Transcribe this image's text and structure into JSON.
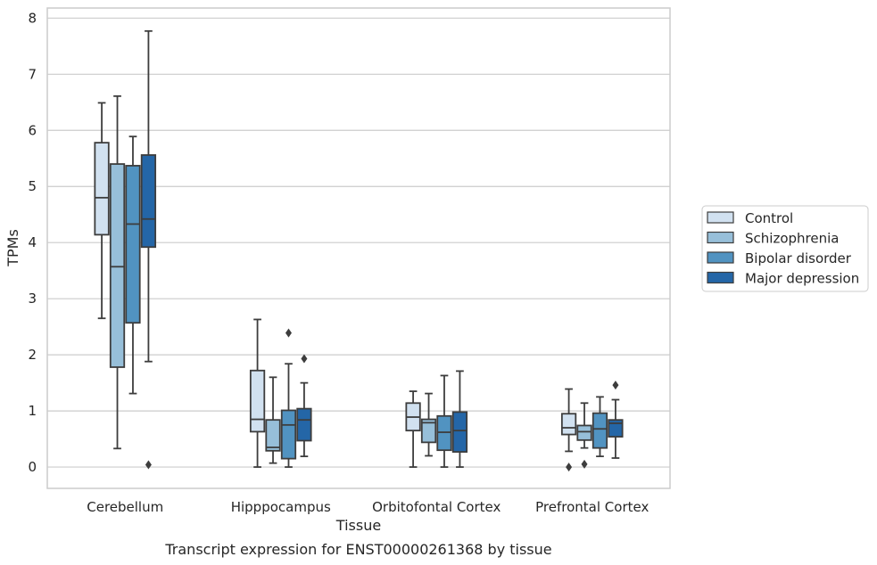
{
  "caption": "Transcript expression for ENST00000261368 by tissue",
  "chart_data": {
    "type": "box",
    "title": "",
    "xlabel": "Tissue",
    "ylabel": "TPMs",
    "ylim": [
      -0.38,
      8.18
    ],
    "yticks": [
      "0",
      "1",
      "2",
      "3",
      "4",
      "5",
      "6",
      "7",
      "8"
    ],
    "grid": "horizontal",
    "legend_position": "right",
    "categories": [
      "Cerebellum",
      "Hipppocampus",
      "Orbitofontal Cortex",
      "Prefrontal Cortex"
    ],
    "series": [
      {
        "name": "Control",
        "color": "#d1e1f0",
        "boxes": [
          {
            "whisker_low": 2.65,
            "q1": 4.14,
            "median": 4.8,
            "q3": 5.78,
            "whisker_high": 6.49,
            "outliers": []
          },
          {
            "whisker_low": 0.0,
            "q1": 0.63,
            "median": 0.85,
            "q3": 1.72,
            "whisker_high": 2.63,
            "outliers": []
          },
          {
            "whisker_low": 0.0,
            "q1": 0.65,
            "median": 0.89,
            "q3": 1.14,
            "whisker_high": 1.35,
            "outliers": []
          },
          {
            "whisker_low": 0.28,
            "q1": 0.58,
            "median": 0.7,
            "q3": 0.95,
            "whisker_high": 1.39,
            "outliers": [
              0.0
            ]
          }
        ]
      },
      {
        "name": "Schizophrenia",
        "color": "#97bfd9",
        "boxes": [
          {
            "whisker_low": 0.33,
            "q1": 1.78,
            "median": 3.57,
            "q3": 5.4,
            "whisker_high": 6.61,
            "outliers": []
          },
          {
            "whisker_low": 0.07,
            "q1": 0.29,
            "median": 0.35,
            "q3": 0.84,
            "whisker_high": 1.6,
            "outliers": []
          },
          {
            "whisker_low": 0.2,
            "q1": 0.44,
            "median": 0.79,
            "q3": 0.85,
            "whisker_high": 1.31,
            "outliers": []
          },
          {
            "whisker_low": 0.34,
            "q1": 0.48,
            "median": 0.63,
            "q3": 0.74,
            "whisker_high": 1.14,
            "outliers": [
              0.05
            ]
          }
        ]
      },
      {
        "name": "Bipolar disorder",
        "color": "#5193c1",
        "boxes": [
          {
            "whisker_low": 1.31,
            "q1": 2.57,
            "median": 4.33,
            "q3": 5.37,
            "whisker_high": 5.89,
            "outliers": []
          },
          {
            "whisker_low": 0.0,
            "q1": 0.15,
            "median": 0.75,
            "q3": 1.01,
            "whisker_high": 1.84,
            "outliers": [
              2.39
            ]
          },
          {
            "whisker_low": 0.0,
            "q1": 0.3,
            "median": 0.62,
            "q3": 0.91,
            "whisker_high": 1.63,
            "outliers": []
          },
          {
            "whisker_low": 0.19,
            "q1": 0.34,
            "median": 0.68,
            "q3": 0.96,
            "whisker_high": 1.25,
            "outliers": []
          }
        ]
      },
      {
        "name": "Major depression",
        "color": "#2466a7",
        "boxes": [
          {
            "whisker_low": 1.88,
            "q1": 3.92,
            "median": 4.42,
            "q3": 5.56,
            "whisker_high": 7.77,
            "outliers": [
              0.04
            ]
          },
          {
            "whisker_low": 0.19,
            "q1": 0.47,
            "median": 0.84,
            "q3": 1.04,
            "whisker_high": 1.5,
            "outliers": [
              1.93
            ]
          },
          {
            "whisker_low": 0.0,
            "q1": 0.27,
            "median": 0.65,
            "q3": 0.98,
            "whisker_high": 1.71,
            "outliers": []
          },
          {
            "whisker_low": 0.16,
            "q1": 0.54,
            "median": 0.78,
            "q3": 0.84,
            "whisker_high": 1.2,
            "outliers": [
              1.46
            ]
          }
        ]
      }
    ]
  }
}
